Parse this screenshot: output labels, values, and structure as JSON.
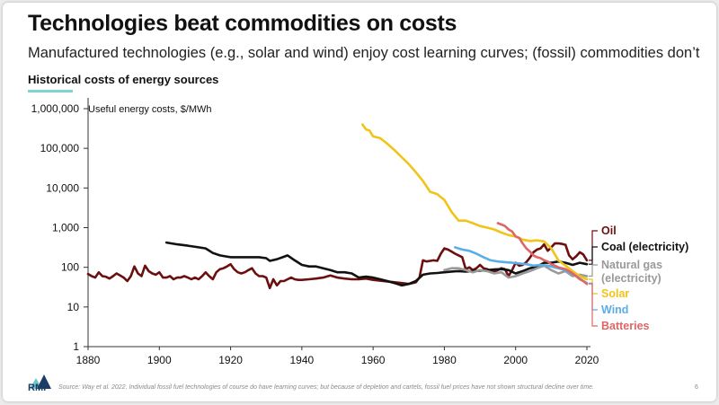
{
  "slide": {
    "title": "Technologies beat commodities on costs",
    "subtitle": "Manufactured technologies (e.g., solar and wind) enjoy cost learning curves; (fossil) commodities don’t",
    "section_title": "Historical costs of energy sources",
    "source": "Source: Way et al. 2022. Individual fossil fuel technologies of course do have learning curves; but because of depletion and cartels, fossil fuel prices have not shown structural decline over time.",
    "page_number": "6",
    "logo_text": "RMI"
  },
  "chart_data": {
    "type": "line",
    "ylabel": "Useful energy costs, $/MWh",
    "yscale": "log",
    "ylim": [
      1,
      1000000
    ],
    "xlim": [
      1880,
      2020
    ],
    "y_ticks": [
      1,
      10,
      100,
      1000,
      10000,
      100000,
      1000000
    ],
    "y_tick_labels": [
      "1",
      "10",
      "100",
      "1,000",
      "10,000",
      "100,000",
      "1,000,000"
    ],
    "x_ticks": [
      1880,
      1900,
      1920,
      1940,
      1960,
      1980,
      2000,
      2020
    ],
    "x_tick_labels": [
      "1880",
      "1900",
      "1920",
      "1940",
      "1960",
      "1980",
      "2000",
      "2020"
    ],
    "grid": false,
    "legend": "right",
    "series": [
      {
        "name": "Oil",
        "color": "#6b0f0f",
        "label_y": 650,
        "points": [
          [
            1880,
            68
          ],
          [
            1881,
            60
          ],
          [
            1882,
            55
          ],
          [
            1883,
            75
          ],
          [
            1884,
            60
          ],
          [
            1885,
            58
          ],
          [
            1886,
            52
          ],
          [
            1887,
            60
          ],
          [
            1888,
            70
          ],
          [
            1889,
            62
          ],
          [
            1890,
            55
          ],
          [
            1891,
            45
          ],
          [
            1892,
            60
          ],
          [
            1893,
            105
          ],
          [
            1894,
            70
          ],
          [
            1895,
            60
          ],
          [
            1896,
            110
          ],
          [
            1897,
            80
          ],
          [
            1898,
            70
          ],
          [
            1899,
            65
          ],
          [
            1900,
            75
          ],
          [
            1901,
            55
          ],
          [
            1902,
            55
          ],
          [
            1903,
            60
          ],
          [
            1904,
            50
          ],
          [
            1905,
            55
          ],
          [
            1906,
            55
          ],
          [
            1907,
            60
          ],
          [
            1908,
            55
          ],
          [
            1909,
            50
          ],
          [
            1910,
            55
          ],
          [
            1911,
            50
          ],
          [
            1912,
            60
          ],
          [
            1913,
            75
          ],
          [
            1914,
            60
          ],
          [
            1915,
            50
          ],
          [
            1916,
            75
          ],
          [
            1917,
            90
          ],
          [
            1918,
            95
          ],
          [
            1919,
            105
          ],
          [
            1920,
            120
          ],
          [
            1921,
            90
          ],
          [
            1922,
            75
          ],
          [
            1923,
            70
          ],
          [
            1924,
            75
          ],
          [
            1925,
            85
          ],
          [
            1926,
            95
          ],
          [
            1927,
            70
          ],
          [
            1928,
            60
          ],
          [
            1929,
            60
          ],
          [
            1930,
            55
          ],
          [
            1931,
            30
          ],
          [
            1932,
            50
          ],
          [
            1933,
            35
          ],
          [
            1934,
            45
          ],
          [
            1935,
            45
          ],
          [
            1936,
            50
          ],
          [
            1937,
            55
          ],
          [
            1938,
            50
          ],
          [
            1939,
            48
          ],
          [
            1940,
            48
          ],
          [
            1942,
            50
          ],
          [
            1944,
            52
          ],
          [
            1946,
            55
          ],
          [
            1948,
            62
          ],
          [
            1950,
            55
          ],
          [
            1952,
            52
          ],
          [
            1954,
            50
          ],
          [
            1956,
            50
          ],
          [
            1958,
            52
          ],
          [
            1960,
            48
          ],
          [
            1962,
            46
          ],
          [
            1964,
            44
          ],
          [
            1966,
            42
          ],
          [
            1968,
            40
          ],
          [
            1970,
            38
          ],
          [
            1972,
            42
          ],
          [
            1973,
            55
          ],
          [
            1974,
            150
          ],
          [
            1975,
            140
          ],
          [
            1976,
            145
          ],
          [
            1977,
            150
          ],
          [
            1978,
            145
          ],
          [
            1979,
            220
          ],
          [
            1980,
            300
          ],
          [
            1981,
            280
          ],
          [
            1982,
            250
          ],
          [
            1983,
            220
          ],
          [
            1984,
            200
          ],
          [
            1985,
            180
          ],
          [
            1986,
            90
          ],
          [
            1987,
            100
          ],
          [
            1988,
            85
          ],
          [
            1989,
            95
          ],
          [
            1990,
            115
          ],
          [
            1991,
            95
          ],
          [
            1992,
            90
          ],
          [
            1993,
            80
          ],
          [
            1994,
            78
          ],
          [
            1995,
            85
          ],
          [
            1996,
            95
          ],
          [
            1997,
            90
          ],
          [
            1998,
            60
          ],
          [
            1999,
            85
          ],
          [
            2000,
            130
          ],
          [
            2001,
            110
          ],
          [
            2002,
            115
          ],
          [
            2003,
            135
          ],
          [
            2004,
            175
          ],
          [
            2005,
            240
          ],
          [
            2006,
            280
          ],
          [
            2007,
            300
          ],
          [
            2008,
            380
          ],
          [
            2009,
            260
          ],
          [
            2010,
            320
          ],
          [
            2011,
            400
          ],
          [
            2012,
            400
          ],
          [
            2013,
            390
          ],
          [
            2014,
            370
          ],
          [
            2015,
            200
          ],
          [
            2016,
            160
          ],
          [
            2017,
            190
          ],
          [
            2018,
            240
          ],
          [
            2019,
            210
          ],
          [
            2020,
            150
          ]
        ]
      },
      {
        "name": "Coal (electricity)",
        "color": "#111111",
        "label_y": 330,
        "points": [
          [
            1902,
            420
          ],
          [
            1905,
            380
          ],
          [
            1908,
            350
          ],
          [
            1911,
            320
          ],
          [
            1913,
            300
          ],
          [
            1915,
            230
          ],
          [
            1917,
            200
          ],
          [
            1920,
            180
          ],
          [
            1923,
            180
          ],
          [
            1926,
            180
          ],
          [
            1928,
            180
          ],
          [
            1930,
            170
          ],
          [
            1931,
            145
          ],
          [
            1933,
            160
          ],
          [
            1935,
            185
          ],
          [
            1936,
            200
          ],
          [
            1938,
            150
          ],
          [
            1940,
            115
          ],
          [
            1942,
            105
          ],
          [
            1944,
            105
          ],
          [
            1946,
            95
          ],
          [
            1948,
            85
          ],
          [
            1950,
            75
          ],
          [
            1952,
            75
          ],
          [
            1954,
            70
          ],
          [
            1956,
            55
          ],
          [
            1958,
            58
          ],
          [
            1960,
            55
          ],
          [
            1962,
            50
          ],
          [
            1964,
            45
          ],
          [
            1966,
            40
          ],
          [
            1968,
            35
          ],
          [
            1970,
            38
          ],
          [
            1972,
            45
          ],
          [
            1974,
            65
          ],
          [
            1976,
            70
          ],
          [
            1978,
            72
          ],
          [
            1980,
            75
          ],
          [
            1982,
            78
          ],
          [
            1984,
            80
          ],
          [
            1986,
            78
          ],
          [
            1988,
            80
          ],
          [
            1990,
            82
          ],
          [
            1992,
            85
          ],
          [
            1994,
            88
          ],
          [
            1996,
            90
          ],
          [
            1998,
            85
          ],
          [
            2000,
            70
          ],
          [
            2002,
            80
          ],
          [
            2004,
            95
          ],
          [
            2006,
            105
          ],
          [
            2008,
            130
          ],
          [
            2010,
            130
          ],
          [
            2012,
            140
          ],
          [
            2014,
            130
          ],
          [
            2016,
            115
          ],
          [
            2018,
            130
          ],
          [
            2020,
            120
          ]
        ]
      },
      {
        "name": "Natural gas (electricity)",
        "color": "#999999",
        "label_y": 115,
        "points": [
          [
            1980,
            85
          ],
          [
            1982,
            95
          ],
          [
            1984,
            95
          ],
          [
            1986,
            85
          ],
          [
            1988,
            75
          ],
          [
            1990,
            85
          ],
          [
            1992,
            80
          ],
          [
            1994,
            70
          ],
          [
            1996,
            75
          ],
          [
            1998,
            55
          ],
          [
            2000,
            60
          ],
          [
            2002,
            70
          ],
          [
            2004,
            80
          ],
          [
            2006,
            95
          ],
          [
            2008,
            110
          ],
          [
            2010,
            85
          ],
          [
            2012,
            70
          ],
          [
            2014,
            80
          ],
          [
            2016,
            60
          ],
          [
            2018,
            65
          ],
          [
            2020,
            60
          ]
        ]
      },
      {
        "name": "Solar",
        "color": "#f0c419",
        "label_y": 32,
        "points": [
          [
            1957,
            400000
          ],
          [
            1958,
            300000
          ],
          [
            1959,
            280000
          ],
          [
            1960,
            200000
          ],
          [
            1962,
            180000
          ],
          [
            1964,
            130000
          ],
          [
            1966,
            90000
          ],
          [
            1968,
            60000
          ],
          [
            1970,
            40000
          ],
          [
            1972,
            25000
          ],
          [
            1974,
            15000
          ],
          [
            1976,
            8000
          ],
          [
            1978,
            7000
          ],
          [
            1980,
            5000
          ],
          [
            1982,
            2500
          ],
          [
            1984,
            1500
          ],
          [
            1986,
            1500
          ],
          [
            1988,
            1300
          ],
          [
            1990,
            1100
          ],
          [
            1992,
            1000
          ],
          [
            1994,
            900
          ],
          [
            1996,
            750
          ],
          [
            1998,
            650
          ],
          [
            2000,
            600
          ],
          [
            2002,
            500
          ],
          [
            2004,
            460
          ],
          [
            2006,
            480
          ],
          [
            2008,
            450
          ],
          [
            2010,
            300
          ],
          [
            2012,
            150
          ],
          [
            2014,
            110
          ],
          [
            2016,
            80
          ],
          [
            2018,
            60
          ],
          [
            2020,
            50
          ]
        ]
      },
      {
        "name": "Wind",
        "color": "#5aaee8",
        "label_y": 14,
        "points": [
          [
            1983,
            320
          ],
          [
            1985,
            280
          ],
          [
            1987,
            260
          ],
          [
            1989,
            220
          ],
          [
            1991,
            180
          ],
          [
            1993,
            150
          ],
          [
            1995,
            140
          ],
          [
            1997,
            135
          ],
          [
            1999,
            130
          ],
          [
            2001,
            125
          ],
          [
            2003,
            120
          ],
          [
            2005,
            110
          ],
          [
            2007,
            115
          ],
          [
            2009,
            110
          ],
          [
            2011,
            100
          ],
          [
            2013,
            90
          ],
          [
            2015,
            75
          ],
          [
            2017,
            60
          ],
          [
            2019,
            45
          ],
          [
            2020,
            40
          ]
        ]
      },
      {
        "name": "Batteries",
        "color": "#e06666",
        "label_y": 6,
        "points": [
          [
            1995,
            1300
          ],
          [
            1996,
            1200
          ],
          [
            1997,
            1100
          ],
          [
            1998,
            900
          ],
          [
            1999,
            800
          ],
          [
            2000,
            600
          ],
          [
            2001,
            550
          ],
          [
            2002,
            400
          ],
          [
            2003,
            300
          ],
          [
            2004,
            250
          ],
          [
            2005,
            200
          ],
          [
            2006,
            180
          ],
          [
            2007,
            170
          ],
          [
            2008,
            150
          ],
          [
            2009,
            140
          ],
          [
            2010,
            120
          ],
          [
            2011,
            110
          ],
          [
            2012,
            100
          ],
          [
            2013,
            95
          ],
          [
            2014,
            90
          ],
          [
            2015,
            80
          ],
          [
            2016,
            70
          ],
          [
            2017,
            60
          ],
          [
            2018,
            50
          ],
          [
            2019,
            45
          ],
          [
            2020,
            38
          ]
        ]
      }
    ]
  }
}
